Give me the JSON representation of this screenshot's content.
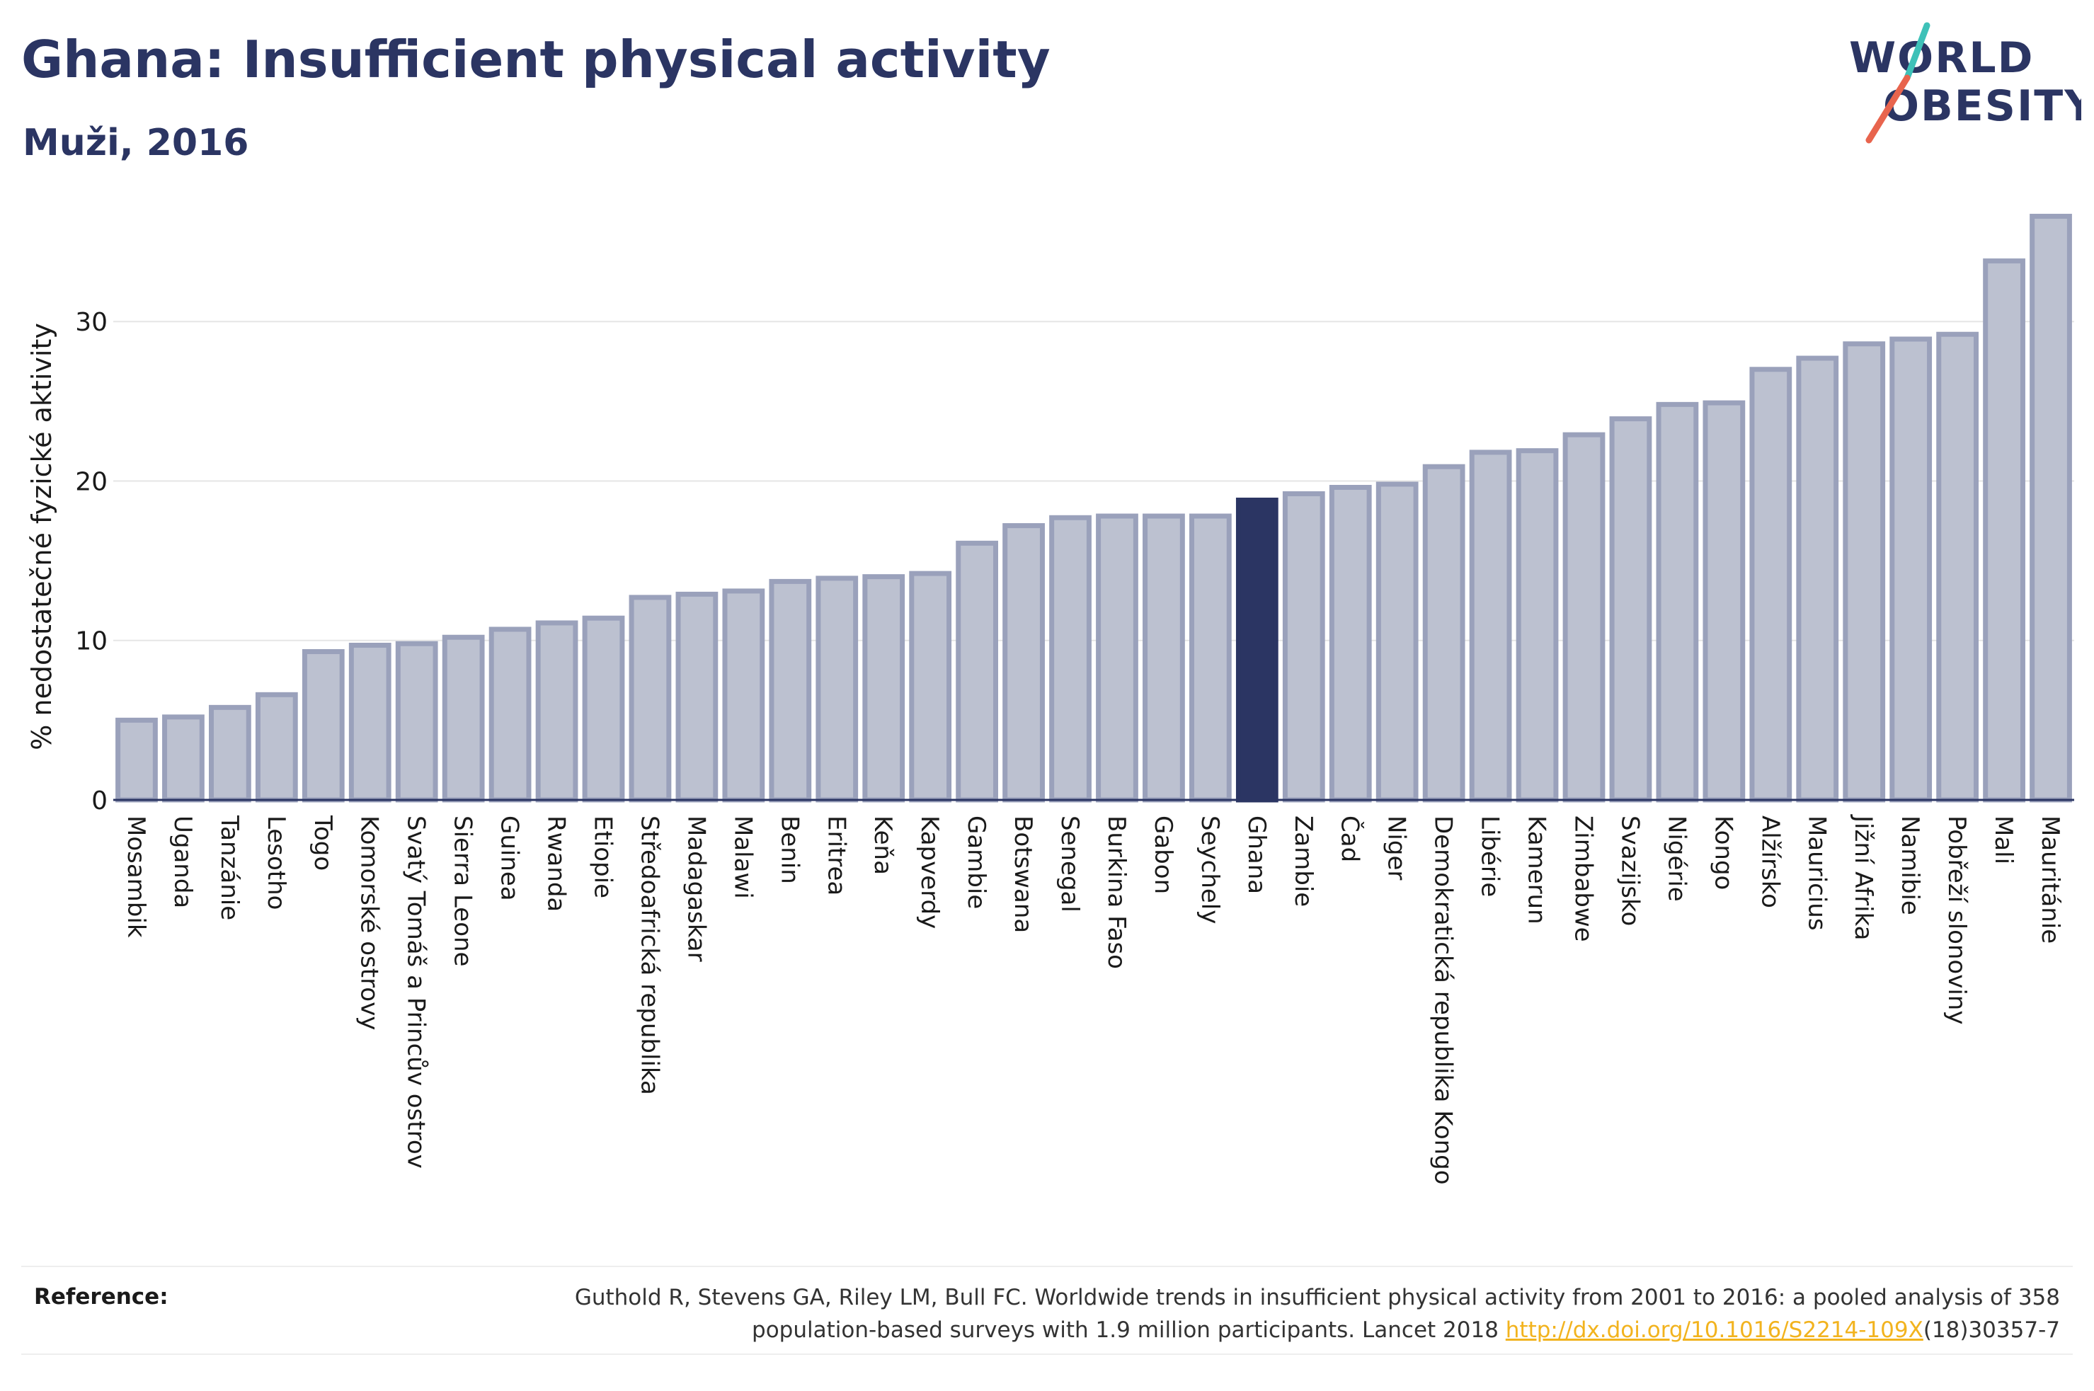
{
  "title": "Ghana: Insufficient physical activity",
  "subtitle": "Muži, 2016",
  "logo": {
    "line1": "WORLD",
    "line2": "OBESITY",
    "colors": [
      "#2b3563",
      "#3ec1b8",
      "#e8644d"
    ]
  },
  "colors": {
    "highlight": "#2b3563",
    "bar": "#bcc1d0",
    "bar_stroke": "#9aa1bb",
    "axis": "#2b3563",
    "grid": "#e6e6e6"
  },
  "chart_data": {
    "type": "bar",
    "title": "Ghana: Insufficient physical activity",
    "subtitle": "Muži, 2016",
    "ylabel": "% nedostatečné fyzické aktivity",
    "xlabel": "",
    "ylim": [
      0,
      38
    ],
    "yticks": [
      0,
      10,
      20,
      30
    ],
    "grid": true,
    "highlight": "Ghana",
    "categories": [
      "Mosambik",
      "Uganda",
      "Tanzánie",
      "Lesotho",
      "Togo",
      "Komorské ostrovy",
      "Svatý Tomáš a Princův ostrov",
      "Sierra Leone",
      "Guinea",
      "Rwanda",
      "Etiopie",
      "Středoafrická republika",
      "Madagaskar",
      "Malawi",
      "Benin",
      "Eritrea",
      "Keňa",
      "Kapverdy",
      "Gambie",
      "Botswana",
      "Senegal",
      "Burkina Faso",
      "Gabon",
      "Seychely",
      "Ghana",
      "Zambie",
      "Čad",
      "Niger",
      "Demokratická republika Kongo",
      "Libérie",
      "Kamerun",
      "Zimbabwe",
      "Svazijsko",
      "Nigérie",
      "Kongo",
      "Alžírsko",
      "Mauricius",
      "Jižní Afrika",
      "Namibie",
      "Pobřeží slonoviny",
      "Mali",
      "Mauritánie"
    ],
    "values": [
      5.0,
      5.2,
      5.8,
      6.6,
      9.3,
      9.7,
      9.8,
      10.2,
      10.7,
      11.1,
      11.4,
      12.7,
      12.9,
      13.1,
      13.7,
      13.9,
      14.0,
      14.2,
      16.1,
      17.2,
      17.7,
      17.8,
      17.8,
      17.8,
      18.8,
      19.2,
      19.6,
      19.8,
      20.9,
      21.8,
      21.9,
      22.9,
      23.9,
      24.8,
      24.9,
      27.0,
      27.7,
      28.6,
      28.9,
      29.2,
      33.8,
      36.6
    ]
  },
  "reference": {
    "label": "Reference:",
    "line1": "Guthold R, Stevens GA, Riley LM, Bull FC. Worldwide trends in insufficient physical activity from 2001 to 2016: a pooled analysis of 358",
    "line2_before": "population-based surveys with 1.9 million participants. Lancet 2018 ",
    "link": "http://dx.doi.org/10.1016/S2214-109X",
    "line2_after": "(18)30357-7"
  }
}
